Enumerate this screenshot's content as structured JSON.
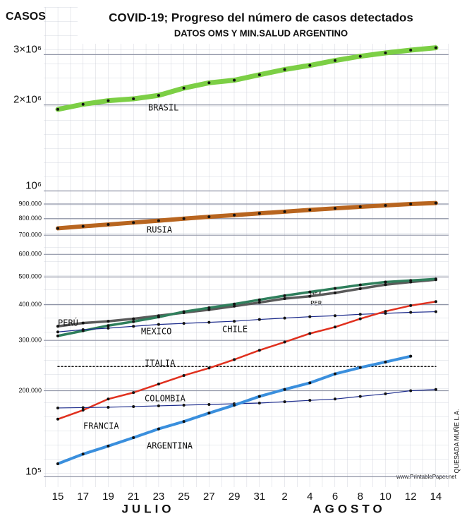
{
  "chart_data": {
    "type": "line",
    "title": "COVID-19; Progreso del número de casos detectados",
    "subtitle": "DATOS OMS Y MIN.SALUD ARGENTINO",
    "y_label": "CASOS",
    "months": [
      "JULIO",
      "AGOSTO"
    ],
    "log_scale": true,
    "grid": true,
    "categories": [
      "15",
      "17",
      "19",
      "21",
      "23",
      "25",
      "27",
      "29",
      "31",
      "2",
      "4",
      "6",
      "8",
      "10",
      "12",
      "14"
    ],
    "ylim": [
      92000,
      4400000
    ],
    "yticks": [
      {
        "value": 100000,
        "label": "10⁵"
      },
      {
        "value": 200000,
        "label": "200.000"
      },
      {
        "value": 300000,
        "label": "300.000"
      },
      {
        "value": 400000,
        "label": "400.000"
      },
      {
        "value": 500000,
        "label": "500.000"
      },
      {
        "value": 600000,
        "label": "600.000"
      },
      {
        "value": 700000,
        "label": "700.000"
      },
      {
        "value": 800000,
        "label": "800.000"
      },
      {
        "value": 900000,
        "label": "900.000"
      },
      {
        "value": 1000000,
        "label": "10⁶"
      },
      {
        "value": 2000000,
        "label": "2×10⁶"
      },
      {
        "value": 3000000,
        "label": "3×10⁶"
      }
    ],
    "series": [
      {
        "name": "BRASIL",
        "color": "#7ccf45",
        "values": [
          1930000,
          2010000,
          2070000,
          2100000,
          2160000,
          2290000,
          2390000,
          2440000,
          2550000,
          2660000,
          2750000,
          2860000,
          2960000,
          3040000,
          3110000,
          3170000
        ]
      },
      {
        "name": "RUSIA",
        "color": "#b8651f",
        "values": [
          740000,
          752000,
          763000,
          775000,
          787000,
          800000,
          812000,
          823000,
          835000,
          846000,
          858000,
          869000,
          880000,
          890000,
          900000,
          907000
        ]
      },
      {
        "name": "PERÚ",
        "color": "#5a5a5a",
        "values": [
          336000,
          345000,
          350000,
          357000,
          366000,
          375000,
          384000,
          395000,
          407000,
          420000,
          428000,
          440000,
          455000,
          470000,
          480000,
          489000
        ]
      },
      {
        "name": "MEXICO",
        "color": "#2f7f5c",
        "values": [
          311000,
          324000,
          338000,
          349000,
          362000,
          378000,
          390000,
          402000,
          416000,
          430000,
          443000,
          456000,
          469000,
          480000,
          486000,
          492000
        ]
      },
      {
        "name": "CHILE",
        "color": "#1c2b8c",
        "values": [
          321000,
          327000,
          331000,
          336000,
          341000,
          344000,
          347000,
          350000,
          355000,
          359000,
          363000,
          366000,
          370000,
          373000,
          376000,
          378000
        ]
      },
      {
        "name": "ITALIA",
        "color": "#111111",
        "values": [
          243000,
          243000,
          243000,
          243000,
          243000,
          243000,
          243000,
          243000,
          243000,
          243000,
          243000,
          243000,
          243000,
          243000,
          243000,
          243000
        ]
      },
      {
        "name": "COLOMBIA",
        "color": "#e0301e",
        "values": [
          159000,
          171000,
          187000,
          197000,
          211000,
          226000,
          240000,
          257000,
          277000,
          296000,
          317000,
          334000,
          357000,
          379000,
          397000,
          410000
        ]
      },
      {
        "name": "FRANCIA",
        "color": "#1c2b8c",
        "values": [
          174000,
          174500,
          175000,
          176000,
          177000,
          178000,
          179000,
          180000,
          181000,
          183000,
          185000,
          187000,
          191000,
          195000,
          200000,
          202000
        ]
      },
      {
        "name": "ARGENTINA",
        "color": "#3a8fdd",
        "values": [
          111000,
          120000,
          128000,
          137000,
          147000,
          156000,
          167000,
          178000,
          191000,
          202000,
          213000,
          229000,
          241000,
          252000,
          264000,
          null
        ]
      }
    ],
    "annotations": [
      "MEX",
      "PER",
      "www.PrintablePaper.net",
      "QUESADA MUÑE L.A."
    ]
  }
}
